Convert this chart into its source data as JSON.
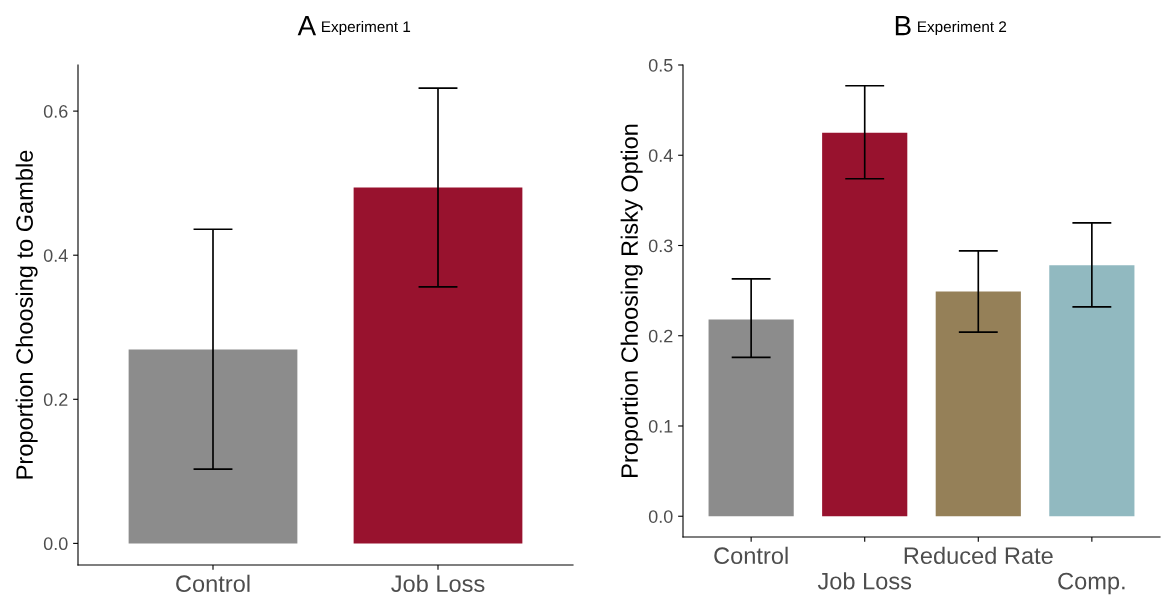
{
  "chart_data": [
    {
      "type": "bar",
      "title": "A",
      "subtitle": "Experiment 1",
      "ylabel": "Proportion Choosing to Gamble",
      "categories": [
        "Control",
        "Job Loss"
      ],
      "values": [
        0.269,
        0.494
      ],
      "colors": [
        "#8c8c8c",
        "#98122e"
      ],
      "errors": [
        [
          0.103,
          0.436
        ],
        [
          0.356,
          0.632
        ]
      ],
      "ylim": [
        -0.03,
        0.664
      ],
      "yticks": [
        {
          "value": 0,
          "label": "0.0"
        },
        0.2,
        0.4,
        0.6
      ],
      "grid": false,
      "legend": false
    },
    {
      "type": "bar",
      "title": "B",
      "subtitle": "Experiment 2",
      "ylabel": "Proportion Choosing Risky Option",
      "categories": [
        "Control",
        "Job Loss",
        "Reduced Rate",
        "Comp."
      ],
      "values": [
        0.218,
        0.425,
        0.249,
        0.278
      ],
      "colors": [
        "#8c8c8c",
        "#98122e",
        "#958058",
        "#91b9c0"
      ],
      "errors": [
        [
          0.176,
          0.263
        ],
        [
          0.374,
          0.477
        ],
        [
          0.204,
          0.294
        ],
        [
          0.232,
          0.325
        ]
      ],
      "ylim": [
        -0.023,
        0.5
      ],
      "yticks": [
        {
          "value": 0,
          "label": "0.0"
        },
        0.1,
        0.2,
        0.3,
        0.4,
        0.5
      ],
      "grid": false,
      "legend": false
    }
  ]
}
